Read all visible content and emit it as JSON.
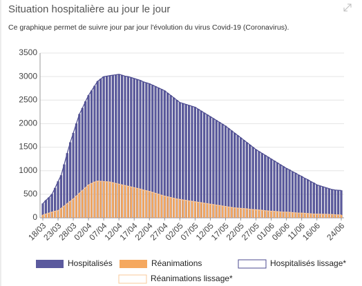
{
  "chart_data": {
    "type": "bar",
    "title": "Situation hospitalière au jour le jour",
    "subtitle": "Ce graphique permet de suivre jour par jour l'évolution du virus Covid-19 (Coronavirus).",
    "categories": [
      "18/03",
      null,
      null,
      null,
      null,
      "23/03",
      null,
      null,
      null,
      null,
      "28/03",
      null,
      null,
      null,
      null,
      "02/04",
      null,
      null,
      null,
      null,
      "07/04",
      null,
      null,
      null,
      null,
      "12/04",
      null,
      null,
      null,
      null,
      "17/04",
      null,
      null,
      null,
      null,
      "22/04",
      null,
      null,
      null,
      null,
      "27/04",
      null,
      null,
      null,
      null,
      "02/05",
      null,
      null,
      null,
      null,
      "07/05",
      null,
      null,
      null,
      null,
      "12/05",
      null,
      null,
      null,
      null,
      "17/05",
      null,
      null,
      null,
      null,
      "22/05",
      null,
      null,
      null,
      null,
      "27/05",
      null,
      null,
      null,
      null,
      "01/06",
      null,
      null,
      null,
      null,
      "06/06",
      null,
      null,
      null,
      null,
      "11/06",
      null,
      null,
      null,
      null,
      "16/06",
      null,
      null,
      null,
      null,
      null,
      null,
      null,
      "24/06"
    ],
    "series": [
      {
        "name": "Hospitalisés",
        "type": "bar",
        "color": "#5b5a9e",
        "values": [
          300,
          370,
          430,
          500,
          630,
          770,
          900,
          1130,
          1370,
          1600,
          1800,
          2000,
          2200,
          2330,
          2470,
          2600,
          2700,
          2800,
          2900,
          2950,
          3000,
          3010,
          3020,
          3030,
          3040,
          3050,
          3030,
          3010,
          3000,
          2980,
          2960,
          2940,
          2920,
          2890,
          2870,
          2850,
          2820,
          2790,
          2760,
          2730,
          2700,
          2650,
          2600,
          2550,
          2500,
          2450,
          2430,
          2410,
          2390,
          2370,
          2350,
          2310,
          2270,
          2230,
          2190,
          2150,
          2110,
          2070,
          2030,
          1990,
          1950,
          1900,
          1850,
          1800,
          1750,
          1700,
          1650,
          1600,
          1550,
          1500,
          1450,
          1410,
          1370,
          1330,
          1290,
          1250,
          1210,
          1170,
          1130,
          1090,
          1050,
          1020,
          980,
          950,
          910,
          880,
          840,
          810,
          770,
          740,
          700,
          680,
          660,
          640,
          620,
          600,
          590,
          585,
          580
        ]
      },
      {
        "name": "Réanimations",
        "type": "bar",
        "color": "#f5a85f",
        "values": [
          60,
          80,
          100,
          120,
          140,
          150,
          200,
          250,
          300,
          350,
          400,
          460,
          520,
          580,
          640,
          700,
          730,
          760,
          780,
          775,
          770,
          765,
          760,
          745,
          730,
          715,
          700,
          685,
          670,
          655,
          640,
          625,
          610,
          590,
          575,
          560,
          540,
          520,
          500,
          480,
          460,
          445,
          430,
          415,
          400,
          390,
          380,
          370,
          360,
          350,
          340,
          330,
          320,
          310,
          300,
          290,
          280,
          270,
          260,
          250,
          240,
          230,
          220,
          210,
          205,
          200,
          195,
          190,
          180,
          175,
          170,
          165,
          160,
          150,
          145,
          140,
          135,
          130,
          125,
          120,
          120,
          115,
          110,
          105,
          100,
          100,
          95,
          90,
          85,
          80,
          80,
          78,
          76,
          74,
          72,
          70,
          65,
          62,
          60
        ]
      },
      {
        "name": "Hospitalisés lissage*",
        "type": "line",
        "color": "#4b4a8f",
        "values": [
          300,
          370,
          430,
          500,
          630,
          770,
          900,
          1130,
          1370,
          1600,
          1800,
          2000,
          2200,
          2330,
          2470,
          2600,
          2700,
          2800,
          2900,
          2950,
          3000,
          3010,
          3020,
          3030,
          3040,
          3050,
          3030,
          3010,
          3000,
          2980,
          2960,
          2940,
          2920,
          2890,
          2870,
          2850,
          2820,
          2790,
          2760,
          2730,
          2700,
          2650,
          2600,
          2550,
          2500,
          2450,
          2430,
          2410,
          2390,
          2370,
          2350,
          2310,
          2270,
          2230,
          2190,
          2150,
          2110,
          2070,
          2030,
          1990,
          1950,
          1900,
          1850,
          1800,
          1750,
          1700,
          1650,
          1600,
          1550,
          1500,
          1450,
          1410,
          1370,
          1330,
          1290,
          1250,
          1210,
          1170,
          1130,
          1090,
          1050,
          1020,
          980,
          950,
          910,
          880,
          840,
          810,
          770,
          740,
          700,
          680,
          660,
          640,
          620,
          600,
          590,
          585,
          580
        ]
      },
      {
        "name": "Réanimations lissage*",
        "type": "line",
        "color": "#f9c89a",
        "values": [
          60,
          80,
          100,
          120,
          140,
          150,
          200,
          250,
          300,
          350,
          400,
          460,
          520,
          580,
          640,
          700,
          730,
          760,
          780,
          775,
          770,
          765,
          760,
          745,
          730,
          715,
          700,
          685,
          670,
          655,
          640,
          625,
          610,
          590,
          575,
          560,
          540,
          520,
          500,
          480,
          460,
          445,
          430,
          415,
          400,
          390,
          380,
          370,
          360,
          350,
          340,
          330,
          320,
          310,
          300,
          290,
          280,
          270,
          260,
          250,
          240,
          230,
          220,
          210,
          205,
          200,
          195,
          190,
          180,
          175,
          170,
          165,
          160,
          150,
          145,
          140,
          135,
          130,
          125,
          120,
          120,
          115,
          110,
          105,
          100,
          100,
          95,
          90,
          85,
          80,
          80,
          78,
          76,
          74,
          72,
          70,
          65,
          62,
          60
        ]
      }
    ],
    "ylim": [
      0,
      3500
    ],
    "yticks": [
      0,
      500,
      1000,
      1500,
      2000,
      2500,
      3000,
      3500
    ],
    "grid": true
  }
}
